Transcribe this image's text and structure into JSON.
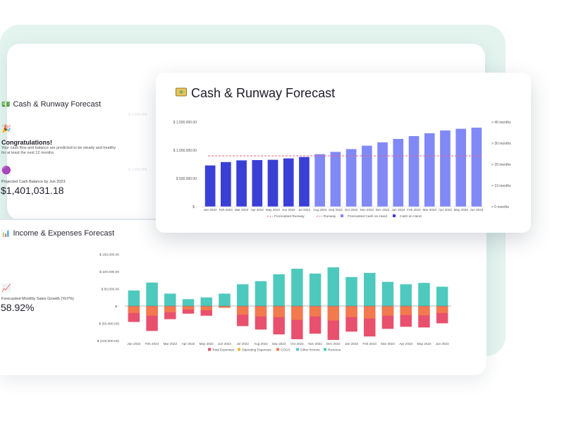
{
  "cash_panel": {
    "title": "Cash & Runway Forecast",
    "congrats_title": "Congratulations!",
    "congrats_text": "Your cash flow and balance are predicted to be steady and healthy for at least the next 12 months.",
    "projected_label": "Projected Cash Balance by Jun 2023",
    "projected_value": "$1,401,031.18",
    "ghost_ticks": [
      "$ 1,500,000",
      "$ 1,000,000"
    ]
  },
  "income_panel": {
    "title": "Income & Expenses Forecast",
    "growth_label": "Forecasted Monthly Sales Growth (YoY%)",
    "growth_value": "58.92%"
  },
  "front_card": {
    "title": "Cash & Runway Forecast"
  },
  "colors": {
    "cash_on_hand": "#3a3fd6",
    "forecasted_cash": "#8189f7",
    "runway_line": "#f0607e",
    "revenue": "#4ec9bd",
    "total_expenses": "#e8506e",
    "cogs": "#f27a4e",
    "operating_expenses": "#f2b630",
    "other_income": "#5fc2e0",
    "background_band": "#e3f4ef"
  },
  "chart_data": [
    {
      "type": "bar",
      "title": "Cash & Runway Forecast",
      "categories": [
        "Jan 2022",
        "Feb 2022",
        "Mar 2022",
        "Apr 2022",
        "May 2022",
        "Jun 2022",
        "Jul 2022",
        "Aug 2022",
        "Sep 2022",
        "Oct 2022",
        "Nov 2022",
        "Dec 2022",
        "Jan 2023",
        "Feb 2023",
        "Mar 2023",
        "Apr 2023",
        "May 2023",
        "Jun 2023"
      ],
      "y_ticks": [
        "$ -",
        "$ 500,000.00",
        "$ 1,000,000.00",
        "$ 1,500,000.00"
      ],
      "y2_ticks": [
        "> 0 months",
        "> 10 months",
        "> 20 months",
        "> 30 months",
        "> 40 months"
      ],
      "ylim": [
        0,
        1500000
      ],
      "series": [
        {
          "name": "Cash on Hand",
          "values": [
            730000,
            790000,
            820000,
            825000,
            830000,
            855000,
            880000,
            null,
            null,
            null,
            null,
            null,
            null,
            null,
            null,
            null,
            null,
            null
          ]
        },
        {
          "name": "Forecasted Cash on Hand",
          "values": [
            null,
            null,
            null,
            null,
            null,
            null,
            null,
            930000,
            970000,
            1020000,
            1080000,
            1140000,
            1200000,
            1250000,
            1300000,
            1350000,
            1380000,
            1400000
          ]
        },
        {
          "name": "Runway",
          "values": [
            900000,
            900000,
            900000,
            900000,
            900000,
            900000,
            900000,
            900000,
            900000,
            900000,
            900000,
            900000,
            900000,
            900000,
            900000,
            900000,
            900000,
            900000
          ]
        }
      ],
      "legend": [
        "Forecasted Runway",
        "Runway",
        "Forecasted Cash on Hand",
        "Cash on Hand"
      ],
      "legend_position": "bottom"
    },
    {
      "type": "bar",
      "title": "Income & Expenses Forecast",
      "categories": [
        "Jan 2022",
        "Feb 2022",
        "Mar 2022",
        "Apr 2022",
        "May 2022",
        "Jun 2022",
        "Jul 2022",
        "Aug 2022",
        "Sep 2022",
        "Oct 2022",
        "Nov 2022",
        "Dec 2022",
        "Jan 2023",
        "Feb 2023",
        "Mar 2023",
        "Apr 2023",
        "May 2023",
        "Jun 2023"
      ],
      "y_ticks": [
        "$ (100,000.00)",
        "$ (50,000.00)",
        "$ -",
        "$ 50,000.00",
        "$ 100,000.00",
        "$ 150,000.00"
      ],
      "ylim": [
        -100000,
        150000
      ],
      "series": [
        {
          "name": "Revenue",
          "values": [
            45000,
            68000,
            36000,
            20000,
            25000,
            36000,
            63000,
            72000,
            92000,
            108000,
            94000,
            112000,
            84000,
            96000,
            70000,
            63000,
            67000,
            56000
          ]
        },
        {
          "name": "COGS",
          "values": [
            -20000,
            -28000,
            -18000,
            -10000,
            -12000,
            -5000,
            -25000,
            -30000,
            -32000,
            -40000,
            -30000,
            -42000,
            -32000,
            -36000,
            -28000,
            -26000,
            -27000,
            -20000
          ]
        },
        {
          "name": "Total Expenses",
          "values": [
            -46000,
            -72000,
            -38000,
            -22000,
            -28000,
            -5000,
            -58000,
            -68000,
            -82000,
            -96000,
            -80000,
            -98000,
            -74000,
            -88000,
            -66000,
            -60000,
            -62000,
            -50000
          ]
        },
        {
          "name": "Operating Expenses",
          "values": [
            null,
            null,
            null,
            null,
            null,
            null,
            null,
            null,
            null,
            null,
            null,
            null,
            null,
            null,
            null,
            null,
            null,
            null
          ]
        },
        {
          "name": "Other Income",
          "values": [
            null,
            null,
            null,
            null,
            null,
            null,
            null,
            null,
            null,
            null,
            null,
            null,
            null,
            null,
            null,
            null,
            null,
            null
          ]
        }
      ],
      "legend": [
        "Total Expenses",
        "Operating Expenses",
        "COGS",
        "Other Income",
        "Revenue"
      ],
      "legend_position": "bottom"
    }
  ]
}
